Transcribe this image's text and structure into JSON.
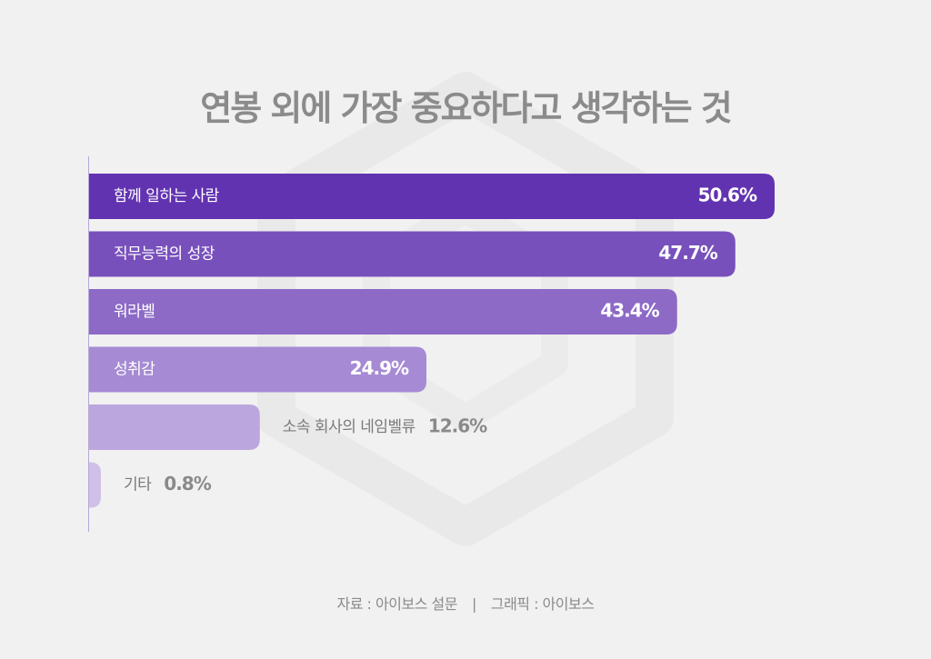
{
  "title": "연봉 외에 가장 중요하다고 생각하는 것",
  "footer": {
    "source": "자료 : 아이보스 설문",
    "separator": "|",
    "graphic": "그래픽 : 아이보스"
  },
  "chart_data": {
    "type": "bar",
    "orientation": "horizontal",
    "title": "연봉 외에 가장 중요하다고 생각하는 것",
    "categories": [
      "함께 일하는 사람",
      "직무능력의 성장",
      "워라벨",
      "성취감",
      "소속 회사의 네임벨류",
      "기타"
    ],
    "values": [
      50.6,
      47.7,
      43.4,
      24.9,
      12.6,
      0.8
    ],
    "labels": [
      "50.6%",
      "47.7%",
      "43.4%",
      "24.9%",
      "12.6%",
      "0.8%"
    ],
    "colors": [
      "#6233b1",
      "#7850bc",
      "#8c6ac6",
      "#a68ad3",
      "#bba6dd",
      "#cfc0e8"
    ],
    "unit": "%",
    "grid": false
  }
}
